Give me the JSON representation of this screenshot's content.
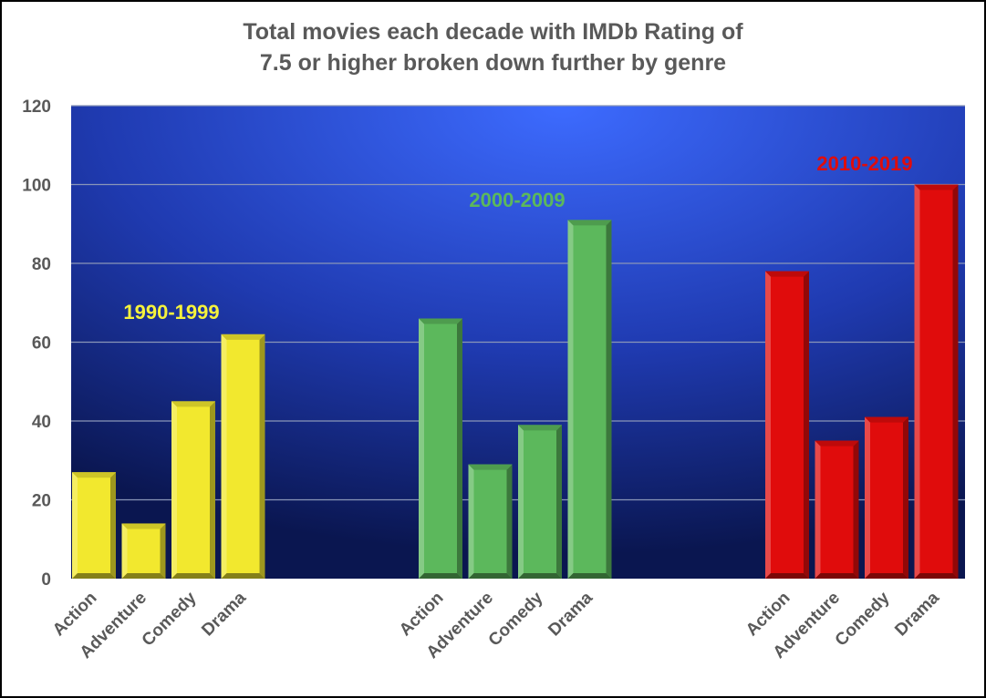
{
  "chart_data": {
    "type": "bar",
    "title_lines": [
      "Total movies each decade with IMDb Rating of",
      "7.5 or higher broken down further by genre"
    ],
    "xlabel": "",
    "ylabel": "",
    "ylim": [
      0,
      120
    ],
    "yticks": [
      0,
      20,
      40,
      60,
      80,
      100,
      120
    ],
    "grid": true,
    "groups": [
      {
        "name": "1990-1999",
        "color": "#f2e82e",
        "categories": [
          "Action",
          "Adventure",
          "Comedy",
          "Drama"
        ],
        "values": [
          27,
          14,
          45,
          62
        ]
      },
      {
        "name": "2000-2009",
        "color": "#5cb85c",
        "categories": [
          "Action",
          "Adventure",
          "Comedy",
          "Drama"
        ],
        "values": [
          66,
          29,
          39,
          91
        ]
      },
      {
        "name": "2010-2019",
        "color": "#e00c0c",
        "categories": [
          "Action",
          "Adventure",
          "Comedy",
          "Drama"
        ],
        "values": [
          78,
          35,
          41,
          100
        ]
      }
    ],
    "colors": {
      "background_center": "#3d6bff",
      "background_edge": "#0a1650",
      "gridline": "#8a96b8",
      "axis_text": "#595959",
      "label_1990": "#f5f23c",
      "label_2000": "#5cb85c",
      "label_2010": "#e00c0c"
    }
  }
}
